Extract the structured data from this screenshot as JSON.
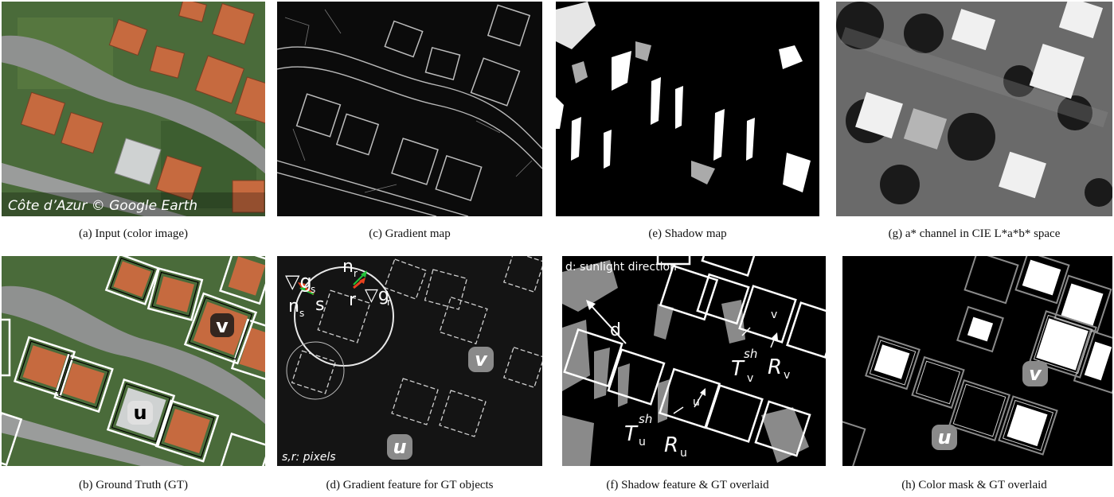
{
  "panels": {
    "a": {
      "caption": "(a)  Input (color image)",
      "watermark": "Côte d’Azur © Google Earth"
    },
    "b": {
      "caption": "(b)  Ground Truth (GT)",
      "label_v": "v",
      "label_u": "u"
    },
    "c": {
      "caption": "(c)  Gradient map"
    },
    "d": {
      "caption": "(d)  Gradient feature for GT objects",
      "note": "s,r: pixels",
      "sym_grad_s": "▽g",
      "sub_s": "s",
      "sym_n_r": "n",
      "sub_r": "r",
      "sym_grad_r": "▽g",
      "sym_n_s": "n",
      "pt_s": "s",
      "pt_r": "r",
      "label_v": "v",
      "label_u": "u"
    },
    "e": {
      "caption": "(e)  Shadow map"
    },
    "f": {
      "caption": "(f)  Shadow feature & GT overlaid",
      "note": "d: sunlight direction",
      "d": "d",
      "T": "T",
      "sh": "sh",
      "R": "R",
      "v": "v",
      "u": "u"
    },
    "g": {
      "caption": "(g)  a* channel in CIE L*a*b* space"
    },
    "h": {
      "caption": "(h)  Color mask & GT overlaid",
      "label_v": "v",
      "label_u": "u"
    }
  },
  "colors": {
    "arrow_red": "#e8421e",
    "arrow_green": "#22c23a",
    "badge": "#8a8a8a",
    "roof": "#c4683e",
    "grass": "#3f6a33",
    "road": "#8d8f8f"
  }
}
